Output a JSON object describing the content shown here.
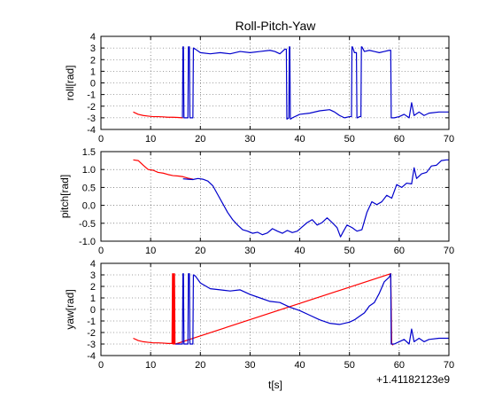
{
  "chart_data": [
    {
      "type": "line",
      "title": "Roll-Pitch-Yaw",
      "xlabel": "",
      "ylabel": "roll[rad]",
      "xlim": [
        0,
        70
      ],
      "ylim": [
        -4,
        4
      ],
      "xticks": [
        0,
        10,
        20,
        30,
        40,
        50,
        60,
        70
      ],
      "yticks": [
        -4,
        -3,
        -2,
        -1,
        0,
        1,
        2,
        3,
        4
      ],
      "xtick_labels": [
        "0",
        "10",
        "20",
        "30",
        "40",
        "50",
        "60",
        "70"
      ],
      "ytick_labels": [
        "-4",
        "-3",
        "-2",
        "-1",
        "0",
        "1",
        "2",
        "3",
        "4"
      ],
      "grid": true,
      "series": [
        {
          "color": "#ff0000",
          "x": [
            6.5,
            7.5,
            8.5,
            9.5,
            10.5,
            11.5,
            12.5,
            13.5,
            14.5,
            15.5,
            16.5
          ],
          "y": [
            -2.5,
            -2.7,
            -2.8,
            -2.85,
            -2.9,
            -2.9,
            -2.92,
            -2.95,
            -2.95,
            -2.97,
            -3.0
          ]
        },
        {
          "color": "#0000cc",
          "x": [
            16.4,
            16.5,
            16.6,
            16.7,
            16.8,
            17.5,
            17.6,
            17.7,
            17.8,
            17.9,
            18.5,
            18.6,
            19.0,
            20,
            22,
            24,
            26,
            28,
            30,
            32,
            34,
            35,
            36,
            37,
            37.3,
            37.4,
            37.5,
            37.8,
            37.9,
            38.0,
            38.1,
            38.2,
            38.5,
            40,
            42,
            44,
            46,
            47,
            48,
            49,
            50,
            50.4,
            50.5,
            50.6,
            51.0,
            51.4,
            51.5,
            51.6,
            52.0,
            52.3,
            52.4,
            52.5,
            53,
            54,
            55,
            56,
            57,
            58,
            58.3,
            58.4,
            58.5,
            59,
            60,
            61,
            62,
            62.5,
            63,
            64,
            65,
            66,
            68,
            70
          ],
          "y": [
            -3.0,
            3.1,
            3.1,
            -3.0,
            -3.0,
            -3.0,
            3.1,
            3.1,
            3.1,
            -3.0,
            -3.0,
            3.0,
            2.9,
            2.6,
            2.5,
            2.6,
            2.5,
            2.7,
            2.6,
            2.7,
            2.8,
            2.7,
            2.5,
            2.9,
            2.9,
            -3.1,
            -3.1,
            -3.0,
            3.1,
            3.1,
            -3.1,
            -3.1,
            -3.0,
            -2.7,
            -2.6,
            -2.4,
            -2.3,
            -2.5,
            -2.8,
            -3.0,
            -2.9,
            -2.9,
            3.1,
            3.1,
            2.6,
            2.6,
            -3.0,
            -3.0,
            -2.9,
            -2.9,
            3.1,
            3.1,
            2.7,
            2.8,
            2.7,
            2.6,
            2.7,
            2.8,
            2.8,
            -3.0,
            -3.0,
            -3.0,
            -2.9,
            -2.7,
            -3.0,
            -1.7,
            -2.8,
            -2.5,
            -2.8,
            -2.6,
            -2.5,
            -2.5
          ]
        }
      ]
    },
    {
      "type": "line",
      "title": "",
      "xlabel": "",
      "ylabel": "pitch[rad]",
      "xlim": [
        0,
        70
      ],
      "ylim": [
        -1.0,
        1.5
      ],
      "xticks": [
        0,
        10,
        20,
        30,
        40,
        50,
        60,
        70
      ],
      "yticks": [
        -1.0,
        -0.5,
        0.0,
        0.5,
        1.0,
        1.5
      ],
      "xtick_labels": [
        "0",
        "10",
        "20",
        "30",
        "40",
        "50",
        "60",
        "70"
      ],
      "ytick_labels": [
        "-1.0",
        "-0.5",
        "0.0",
        "0.5",
        "1.0",
        "1.5"
      ],
      "grid": true,
      "series": [
        {
          "color": "#ff0000",
          "x": [
            6.5,
            7.5,
            8.5,
            9.5,
            10.5,
            11.5,
            12.5,
            13.5,
            14.5,
            15.5,
            16.5,
            17.5,
            18.5
          ],
          "y": [
            1.27,
            1.25,
            1.12,
            1.0,
            0.98,
            0.92,
            0.9,
            0.86,
            0.83,
            0.82,
            0.8,
            0.76,
            0.73
          ]
        },
        {
          "color": "#0000cc",
          "x": [
            16.5,
            17.5,
            18.5,
            19.5,
            20.5,
            21.5,
            22.5,
            23.5,
            24.5,
            25.5,
            26.5,
            27.5,
            28.5,
            29.5,
            30.5,
            31.5,
            32.5,
            33.5,
            34.5,
            35.5,
            36.5,
            37.5,
            38.5,
            39.5,
            40.5,
            41.5,
            42.5,
            43.5,
            44.5,
            45.5,
            46.5,
            47.5,
            48.2,
            48.8,
            49.5,
            50.5,
            51.5,
            52.5,
            53.5,
            54.5,
            55.5,
            56.5,
            57.5,
            58.5,
            59.5,
            60.5,
            61.5,
            62.5,
            63.0,
            63.5,
            64.5,
            65.5,
            66.5,
            67.5,
            68.5,
            69.5,
            70
          ],
          "y": [
            0.74,
            0.73,
            0.72,
            0.75,
            0.73,
            0.68,
            0.55,
            0.3,
            0.05,
            -0.2,
            -0.4,
            -0.55,
            -0.68,
            -0.72,
            -0.78,
            -0.75,
            -0.82,
            -0.77,
            -0.65,
            -0.72,
            -0.78,
            -0.7,
            -0.76,
            -0.72,
            -0.6,
            -0.48,
            -0.4,
            -0.55,
            -0.48,
            -0.35,
            -0.48,
            -0.62,
            -0.88,
            -0.72,
            -0.55,
            -0.62,
            -0.72,
            -0.68,
            -0.2,
            0.1,
            0.02,
            0.1,
            0.28,
            0.2,
            0.58,
            0.5,
            0.62,
            0.6,
            1.05,
            0.75,
            0.88,
            0.92,
            1.1,
            1.12,
            1.25,
            1.27,
            1.27
          ]
        }
      ]
    },
    {
      "type": "line",
      "title": "",
      "xlabel": "t[s]",
      "ylabel": "yaw[rad]",
      "xlim": [
        0,
        70
      ],
      "ylim": [
        -4,
        4
      ],
      "xticks": [
        0,
        10,
        20,
        30,
        40,
        50,
        60,
        70
      ],
      "yticks": [
        -4,
        -3,
        -2,
        -1,
        0,
        1,
        2,
        3,
        4
      ],
      "xtick_labels": [
        "0",
        "10",
        "20",
        "30",
        "40",
        "50",
        "60",
        "70"
      ],
      "ytick_labels": [
        "-4",
        "-3",
        "-2",
        "-1",
        "0",
        "1",
        "2",
        "3",
        "4"
      ],
      "x_offset_label": "+1.41182123e9",
      "grid": true,
      "series": [
        {
          "color": "#ff0000",
          "x": [
            6.5,
            7.5,
            8.5,
            9.5,
            10.5,
            11.5,
            12.5,
            13.5,
            14.0,
            14.3,
            14.4,
            14.5,
            14.6,
            14.7,
            14.8,
            14.9,
            15.0,
            58.3,
            58.5,
            58.8
          ],
          "y": [
            -2.5,
            -2.7,
            -2.8,
            -2.85,
            -2.9,
            -2.9,
            -2.92,
            -2.95,
            -2.95,
            -2.95,
            3.1,
            -3.0,
            3.1,
            -3.0,
            3.1,
            -3.0,
            -3.0,
            3.1,
            -3.0,
            -3.1
          ]
        },
        {
          "color": "#0000cc",
          "x": [
            15.0,
            16.0,
            16.4,
            16.5,
            16.6,
            16.7,
            16.8,
            17.5,
            17.6,
            17.7,
            17.8,
            17.9,
            18.5,
            18.6,
            19,
            20,
            22,
            24,
            26,
            28,
            30,
            32,
            34,
            36,
            38,
            40,
            42,
            44,
            46,
            48,
            50,
            51,
            52,
            53,
            54,
            55,
            56,
            57,
            58.0,
            58.3,
            58.4,
            59,
            60,
            61,
            62,
            62.5,
            63,
            64,
            65,
            66,
            68,
            70
          ],
          "y": [
            -3.0,
            -3.0,
            -3.0,
            3.1,
            3.1,
            -3.0,
            -3.0,
            -3.0,
            3.1,
            3.1,
            3.1,
            -3.0,
            -3.0,
            3.0,
            2.9,
            2.3,
            1.8,
            1.7,
            1.6,
            1.7,
            1.3,
            1.0,
            0.7,
            0.6,
            0.2,
            -0.1,
            -0.5,
            -0.9,
            -1.2,
            -1.3,
            -1.1,
            -0.9,
            -0.6,
            -0.3,
            0.3,
            0.6,
            1.4,
            2.4,
            2.8,
            3.1,
            -3.0,
            -3.0,
            -2.8,
            -2.6,
            -3.0,
            -1.7,
            -2.8,
            -2.5,
            -2.8,
            -2.6,
            -2.5,
            -2.5
          ]
        }
      ]
    }
  ]
}
